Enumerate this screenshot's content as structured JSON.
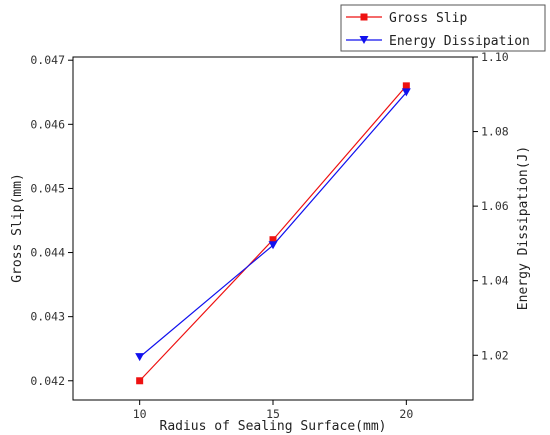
{
  "chart_data": {
    "type": "line",
    "xlabel": "Radius of Sealing Surface(mm)",
    "ylabel_left": "Gross Slip(mm)",
    "ylabel_right": "Energy Dissipation(J)",
    "x_ticks": [
      "10",
      "15",
      "20"
    ],
    "xlim": [
      7.5,
      22.5
    ],
    "y_left_ticks": [
      "0.042",
      "0.043",
      "0.044",
      "0.045",
      "0.046",
      "0.047"
    ],
    "ylim_left": [
      0.0417,
      0.04705
    ],
    "y_right_ticks": [
      "1.02",
      "1.04",
      "1.06",
      "1.08",
      "1.10"
    ],
    "ylim_right": [
      1.008,
      1.1
    ],
    "grid": false,
    "legend_position": "top-right",
    "series": [
      {
        "name": "Gross Slip",
        "axis": "left",
        "color": "#ee1111",
        "marker": "square",
        "x": [
          10,
          15,
          20
        ],
        "values": [
          0.042,
          0.0442,
          0.0466
        ]
      },
      {
        "name": "Energy Dissipation",
        "axis": "right",
        "color": "#1111ee",
        "marker": "triangle-down",
        "x": [
          10,
          15,
          20
        ],
        "values": [
          1.0195,
          1.0495,
          1.0905
        ]
      }
    ]
  }
}
